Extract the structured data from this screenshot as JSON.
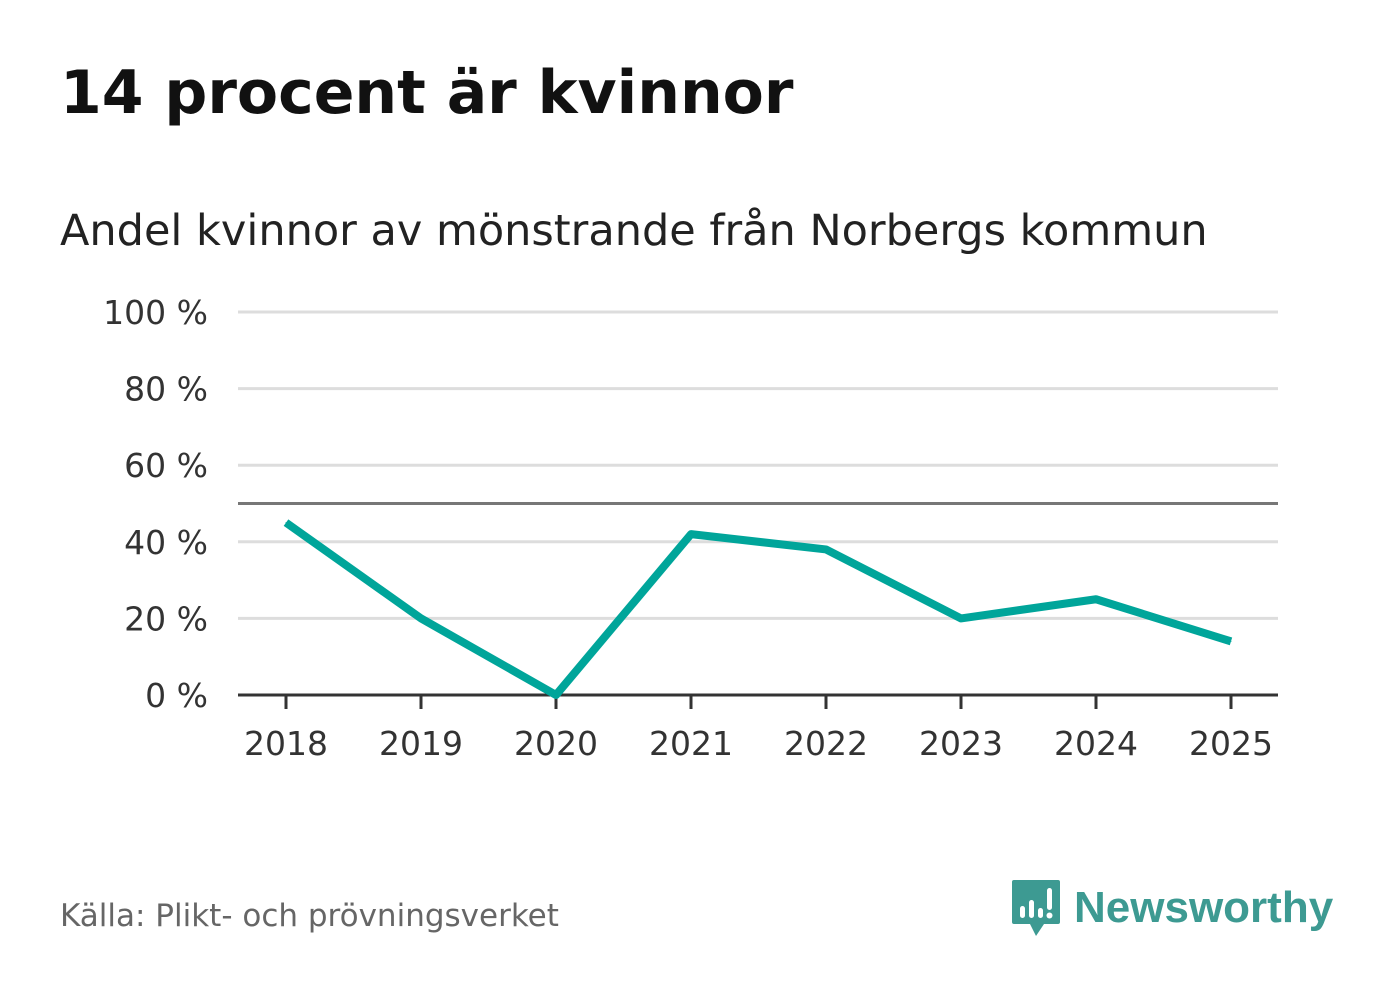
{
  "title": "14 procent är kvinnor",
  "subtitle": "Andel kvinnor av mönstrande från Norbergs kommun",
  "source": "Källa: Plikt- och prövningsverket",
  "brand": {
    "name": "Newsworthy",
    "icon": "newsworthy-logo-icon"
  },
  "colors": {
    "line": "#00a59a",
    "grid": "#dddddd",
    "reference": "#777777",
    "axis": "#333333",
    "brand": "#3d9a92"
  },
  "chart_data": {
    "type": "line",
    "title": "14 procent är kvinnor",
    "subtitle": "Andel kvinnor av mönstrande från Norbergs kommun",
    "xlabel": "",
    "ylabel": "",
    "x": [
      "2018",
      "2019",
      "2020",
      "2021",
      "2022",
      "2023",
      "2024",
      "2025"
    ],
    "series": [
      {
        "name": "Andel kvinnor",
        "values": [
          45,
          20,
          0,
          42,
          38,
          20,
          25,
          14
        ]
      }
    ],
    "ylim": [
      0,
      100
    ],
    "yticks": [
      0,
      20,
      40,
      60,
      80,
      100
    ],
    "ytick_labels": [
      "0 %",
      "20 %",
      "40 %",
      "60 %",
      "80 %",
      "100 %"
    ],
    "reference_line": 50,
    "grid": true,
    "legend": "none"
  }
}
